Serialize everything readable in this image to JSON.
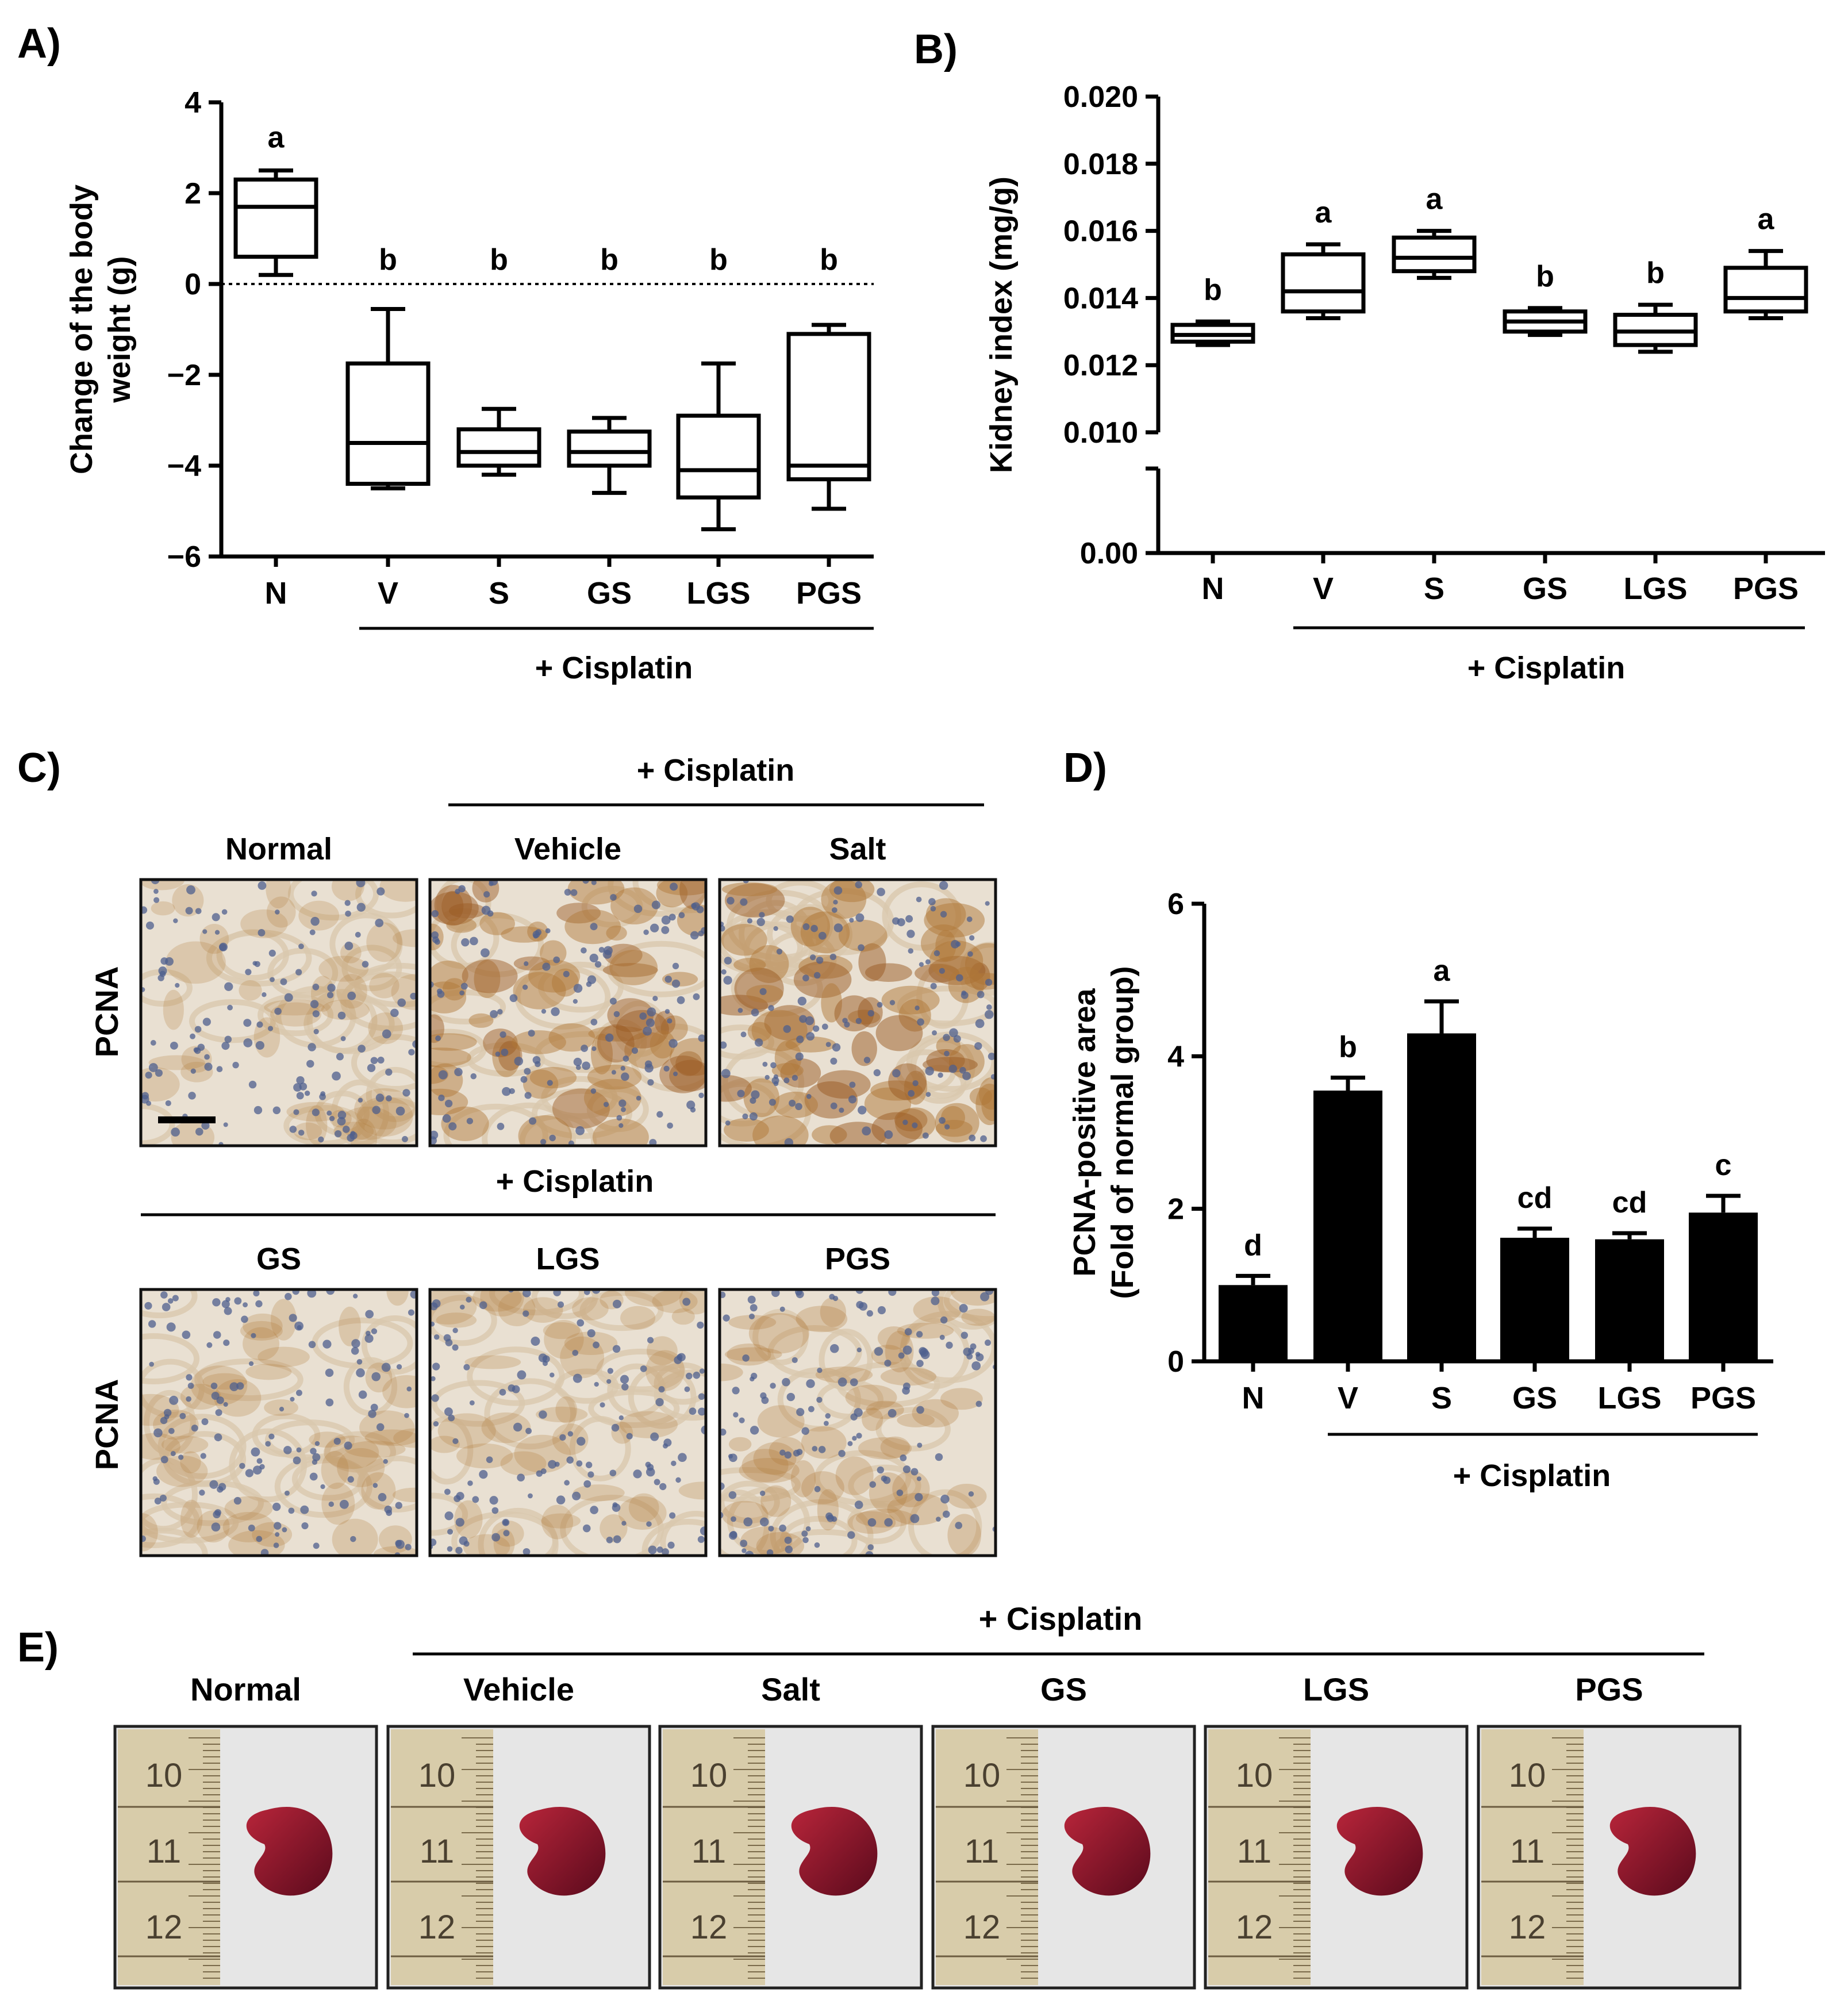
{
  "panels": {
    "a": "A)",
    "b": "B)",
    "c": "C)",
    "d": "D)",
    "e": "E)"
  },
  "chart_data": [
    {
      "id": "A",
      "type": "box",
      "ylabel_lines": [
        "Change of the body",
        "weight (g)"
      ],
      "ylim": [
        -6,
        4
      ],
      "yticks": [
        {
          "v": -6,
          "label": "−6"
        },
        {
          "v": -4,
          "label": "−4"
        },
        {
          "v": -2,
          "label": "−2"
        },
        {
          "v": 0,
          "label": "0"
        },
        {
          "v": 2,
          "label": "2"
        },
        {
          "v": 4,
          "label": "4"
        }
      ],
      "reference_line": 0,
      "categories": [
        "N",
        "V",
        "S",
        "GS",
        "LGS",
        "PGS"
      ],
      "boxes": [
        {
          "min": 0.2,
          "q1": 0.6,
          "median": 1.7,
          "q3": 2.3,
          "max": 2.5
        },
        {
          "min": -4.5,
          "q1": -4.4,
          "median": -3.5,
          "q3": -1.75,
          "max": -0.55
        },
        {
          "min": -4.2,
          "q1": -4.0,
          "median": -3.7,
          "q3": -3.2,
          "max": -2.75
        },
        {
          "min": -4.6,
          "q1": -4.0,
          "median": -3.7,
          "q3": -3.25,
          "max": -2.95
        },
        {
          "min": -5.4,
          "q1": -4.7,
          "median": -4.1,
          "q3": -2.9,
          "max": -1.75
        },
        {
          "min": -4.95,
          "q1": -4.3,
          "median": -4.0,
          "q3": -1.1,
          "max": -0.9
        }
      ],
      "significance": [
        "a",
        "b",
        "b",
        "b",
        "b",
        "b"
      ],
      "group_label": "+ Cisplatin"
    },
    {
      "id": "B",
      "type": "box",
      "ylabel": "Kidney index (mg/g)",
      "ylim": [
        0.01,
        0.02
      ],
      "broken_axis": true,
      "yticks": [
        {
          "v": 0.01,
          "label": "0.010"
        },
        {
          "v": 0.012,
          "label": "0.012"
        },
        {
          "v": 0.014,
          "label": "0.014"
        },
        {
          "v": 0.016,
          "label": "0.016"
        },
        {
          "v": 0.018,
          "label": "0.018"
        },
        {
          "v": 0.02,
          "label": "0.020"
        }
      ],
      "lower_tick_label": "0.00",
      "categories": [
        "N",
        "V",
        "S",
        "GS",
        "LGS",
        "PGS"
      ],
      "boxes": [
        {
          "min": 0.0126,
          "q1": 0.0127,
          "median": 0.0129,
          "q3": 0.0132,
          "max": 0.0133
        },
        {
          "min": 0.0134,
          "q1": 0.0136,
          "median": 0.0142,
          "q3": 0.0153,
          "max": 0.0156
        },
        {
          "min": 0.0146,
          "q1": 0.0148,
          "median": 0.0152,
          "q3": 0.0158,
          "max": 0.016
        },
        {
          "min": 0.0129,
          "q1": 0.013,
          "median": 0.0133,
          "q3": 0.0136,
          "max": 0.0137
        },
        {
          "min": 0.0124,
          "q1": 0.0126,
          "median": 0.013,
          "q3": 0.0135,
          "max": 0.0138
        },
        {
          "min": 0.0134,
          "q1": 0.0136,
          "median": 0.014,
          "q3": 0.0149,
          "max": 0.0154
        }
      ],
      "significance": [
        "b",
        "a",
        "a",
        "b",
        "b",
        "a"
      ],
      "group_label": "+ Cisplatin"
    },
    {
      "id": "D",
      "type": "bar",
      "ylabel_lines": [
        "PCNA-positive area",
        "(Fold of normal group)"
      ],
      "ylim": [
        0,
        6
      ],
      "yticks": [
        {
          "v": 0,
          "label": "0"
        },
        {
          "v": 2,
          "label": "2"
        },
        {
          "v": 4,
          "label": "4"
        },
        {
          "v": 6,
          "label": "6"
        }
      ],
      "categories": [
        "N",
        "V",
        "S",
        "GS",
        "LGS",
        "PGS"
      ],
      "values": [
        1.0,
        3.55,
        4.3,
        1.62,
        1.6,
        1.95
      ],
      "errors": [
        0.12,
        0.17,
        0.42,
        0.12,
        0.08,
        0.22
      ],
      "significance": [
        "d",
        "b",
        "a",
        "cd",
        "cd",
        "c"
      ],
      "group_label": "+ Cisplatin"
    }
  ],
  "panel_c": {
    "group_label_top": "+ Cisplatin",
    "group_label_mid": "+ Cisplatin",
    "row_label": "PCNA",
    "top_labels": [
      "Normal",
      "Vehicle",
      "Salt"
    ],
    "bottom_labels": [
      "GS",
      "LGS",
      "PGS"
    ]
  },
  "panel_e": {
    "group_label": "+ Cisplatin",
    "labels": [
      "Normal",
      "Vehicle",
      "Salt",
      "GS",
      "LGS",
      "PGS"
    ],
    "ruler_numbers": [
      "10",
      "11",
      "12"
    ],
    "colors": {
      "kidney_dark": "#5a0a1c",
      "kidney_light": "#b8253a",
      "ruler": "#d8ccaa",
      "background": "#e6e6e6"
    }
  },
  "tissue_colors": {
    "base": "#e9e0d2",
    "nucleus": "#4e5f8e",
    "stain": "#b07838",
    "strong_stain": "#9a5a22"
  }
}
